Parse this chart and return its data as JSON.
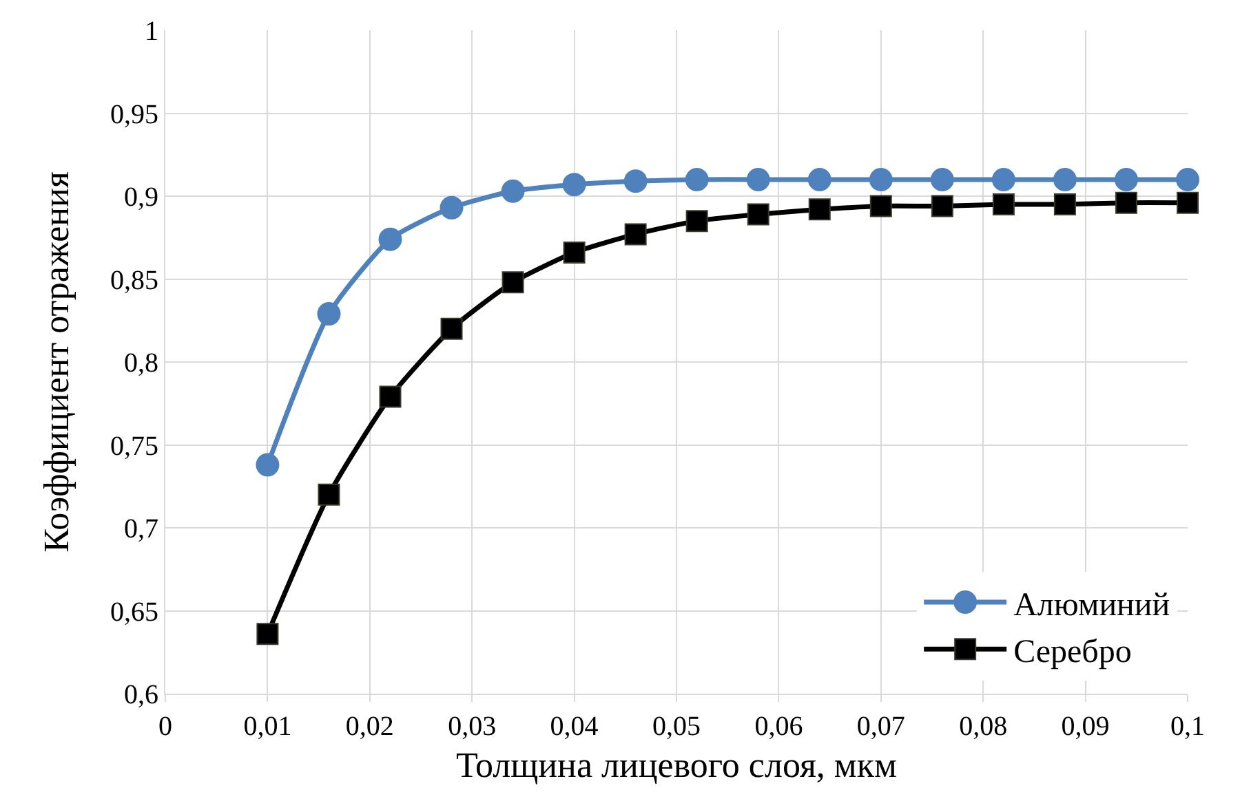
{
  "chart_data": {
    "type": "line",
    "xlabel": "Толщина лицевого слоя, мкм",
    "ylabel": "Коэффициент отражения",
    "x": [
      0.01,
      0.016,
      0.022,
      0.028,
      0.034,
      0.04,
      0.046,
      0.052,
      0.058,
      0.064,
      0.07,
      0.076,
      0.082,
      0.088,
      0.094,
      0.1
    ],
    "series": [
      {
        "name": "Алюминий",
        "color": "#4f81bd",
        "marker": "circle",
        "values": [
          0.738,
          0.829,
          0.874,
          0.893,
          0.903,
          0.907,
          0.909,
          0.91,
          0.91,
          0.91,
          0.91,
          0.91,
          0.91,
          0.91,
          0.91,
          0.91
        ]
      },
      {
        "name": "Серебро",
        "color": "#000000",
        "marker": "square",
        "values": [
          0.636,
          0.72,
          0.779,
          0.82,
          0.848,
          0.866,
          0.877,
          0.885,
          0.889,
          0.892,
          0.894,
          0.894,
          0.895,
          0.895,
          0.896,
          0.896
        ]
      }
    ],
    "xlim": [
      0,
      0.1
    ],
    "xticks": [
      0,
      {
        "value": 0.01,
        "label": "0,01"
      },
      {
        "value": 0.02,
        "label": "0,02"
      },
      {
        "value": 0.03,
        "label": "0,03"
      },
      {
        "value": 0.04,
        "label": "0,04"
      },
      {
        "value": 0.05,
        "label": "0,05"
      },
      {
        "value": 0.06,
        "label": "0,06"
      },
      {
        "value": 0.07,
        "label": "0,07"
      },
      {
        "value": 0.08,
        "label": "0,08"
      },
      {
        "value": 0.09,
        "label": "0,09"
      },
      {
        "value": 0.1,
        "label": "0,1"
      }
    ],
    "ylim": [
      0.6,
      1
    ],
    "yticks": [
      {
        "value": 0.6,
        "label": "0,6"
      },
      {
        "value": 0.65,
        "label": "0,65"
      },
      {
        "value": 0.7,
        "label": "0,7"
      },
      {
        "value": 0.75,
        "label": "0,75"
      },
      {
        "value": 0.8,
        "label": "0,8"
      },
      {
        "value": 0.85,
        "label": "0,85"
      },
      {
        "value": 0.9,
        "label": "0,9"
      },
      {
        "value": 0.95,
        "label": "0,95"
      },
      1
    ],
    "grid": true,
    "legend": "bottom right",
    "line_style": "solid"
  }
}
